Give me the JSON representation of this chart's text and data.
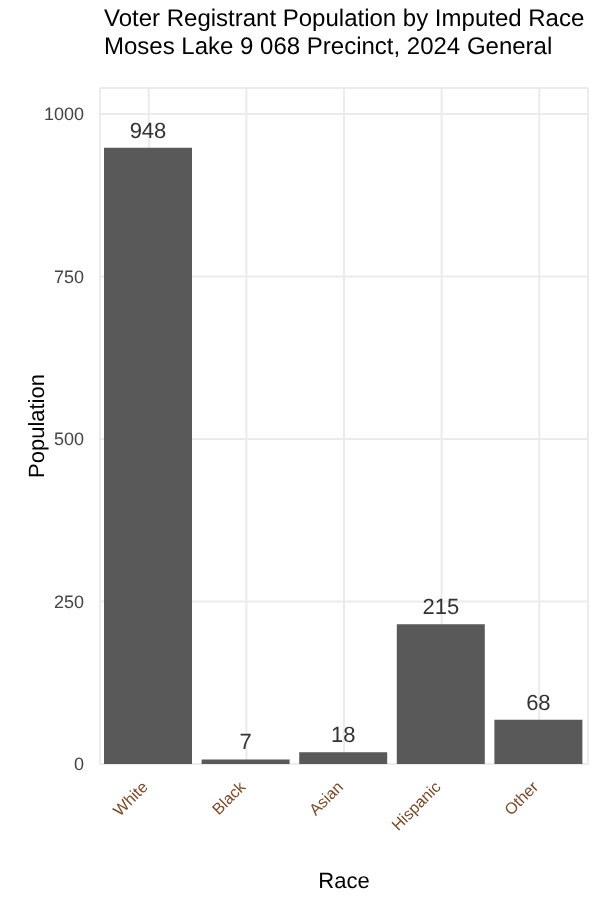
{
  "chart_data": {
    "type": "bar",
    "title": "Voter Registrant Population by Imputed Race",
    "subtitle": "Moses Lake 9  068 Precinct,  2024 General",
    "xlabel": "Race",
    "ylabel": "Population",
    "categories": [
      "White",
      "Black",
      "Asian",
      "Hispanic",
      "Other"
    ],
    "values": [
      948,
      7,
      18,
      215,
      68
    ],
    "color": "#595959",
    "ylim": [
      0,
      1040
    ],
    "yticks": [
      0,
      250,
      500,
      750,
      1000
    ],
    "grid": true,
    "data_labels": true
  }
}
